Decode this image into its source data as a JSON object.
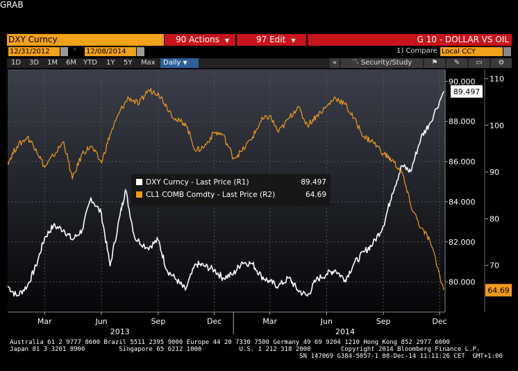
{
  "window": {
    "title": "GRAB"
  },
  "header": {
    "ticker": "DXY Curncy",
    "actions_label": "90 Actions",
    "edit_label": "97 Edit",
    "chart_title": "G 10 - DOLLAR VS OIL"
  },
  "dates": {
    "start": "12/31/2012",
    "end": "12/08/2014",
    "separator": "-"
  },
  "compare": {
    "label": "1) Compare",
    "value": "Local CCY"
  },
  "timeframes": [
    "1D",
    "3D",
    "1M",
    "6M",
    "YTD",
    "1Y",
    "5Y",
    "Max"
  ],
  "frequency": "Daily",
  "toolbar": {
    "security_study": "Security/Study",
    "collapse": "«"
  },
  "legend": [
    {
      "label": "DXY Curncy - Last Price (R1)",
      "value": "89.497",
      "color": "#ffffff"
    },
    {
      "label": "CL1 COMB Comdty - Last Price (R2)",
      "value": "64.69",
      "color": "#f39a1c"
    }
  ],
  "last_values": {
    "dxy": "89.497",
    "cl1": "64.69"
  },
  "footer": {
    "line1": "Australia 61 2 9777 8600 Brazil 5511 2395 9000 Europe 44 20 7330 7500 Germany 49 69 9204 1210 Hong Kong 852 2977 6000",
    "line2": "Japan 81 3 3201 8900         Singapore 65 6212 1000          U.S. 1 212 318 2000        Copyright 2014 Bloomberg Finance L.P.",
    "line3": "                                                                             SN 147069 G384-5057-1 08-Dec-14 11:11:26 CET  GMT+1:00"
  },
  "chart_data": {
    "type": "line",
    "title": "G 10 - DOLLAR VS OIL",
    "x_tick_labels": [
      "Mar",
      "Jun",
      "Sep",
      "Dec",
      "Mar",
      "Jun",
      "Sep",
      "Dec"
    ],
    "year_labels": [
      "2013",
      "2014"
    ],
    "y_axis_r1": {
      "ticks": [
        "80.000",
        "82.000",
        "84.000",
        "86.000",
        "88.000",
        "90.000"
      ],
      "ylim": [
        78.5,
        90.6
      ]
    },
    "y_axis_r2": {
      "ticks": [
        "70",
        "80",
        "90",
        "100",
        "110"
      ],
      "ylim": [
        60,
        112
      ]
    },
    "series": [
      {
        "name": "DXY Curncy - Last Price (R1)",
        "axis": "R1",
        "color": "#ffffff",
        "x": [
          "2012-12-31",
          "2013-01-15",
          "2013-02-01",
          "2013-02-15",
          "2013-03-01",
          "2013-03-15",
          "2013-04-01",
          "2013-04-15",
          "2013-05-01",
          "2013-05-15",
          "2013-06-01",
          "2013-06-15",
          "2013-07-01",
          "2013-07-10",
          "2013-07-25",
          "2013-08-15",
          "2013-09-01",
          "2013-09-15",
          "2013-10-01",
          "2013-10-15",
          "2013-11-01",
          "2013-11-15",
          "2013-12-01",
          "2013-12-15",
          "2014-01-01",
          "2014-01-15",
          "2014-02-01",
          "2014-02-15",
          "2014-03-01",
          "2014-03-15",
          "2014-04-01",
          "2014-04-15",
          "2014-05-01",
          "2014-05-15",
          "2014-06-01",
          "2014-06-15",
          "2014-07-01",
          "2014-07-15",
          "2014-08-01",
          "2014-08-15",
          "2014-09-01",
          "2014-09-15",
          "2014-10-01",
          "2014-10-15",
          "2014-11-01",
          "2014-11-15",
          "2014-12-08"
        ],
        "y": [
          79.8,
          79.3,
          79.8,
          80.8,
          82.2,
          82.8,
          82.6,
          82.1,
          82.6,
          84.2,
          83.4,
          80.8,
          83.3,
          84.6,
          82.2,
          81.7,
          82.1,
          80.6,
          80.1,
          79.6,
          80.9,
          80.8,
          80.6,
          80.2,
          80.4,
          81.0,
          80.9,
          80.3,
          80.0,
          79.8,
          80.2,
          79.6,
          79.3,
          80.1,
          80.4,
          80.6,
          80.1,
          80.9,
          81.5,
          81.9,
          82.8,
          84.4,
          85.8,
          85.5,
          87.2,
          87.9,
          89.5
        ]
      },
      {
        "name": "CL1 COMB Comdty - Last Price (R2)",
        "axis": "R2",
        "color": "#f39a1c",
        "x": [
          "2012-12-31",
          "2013-01-15",
          "2013-02-01",
          "2013-02-15",
          "2013-03-01",
          "2013-03-15",
          "2013-04-01",
          "2013-04-15",
          "2013-05-01",
          "2013-05-15",
          "2013-06-01",
          "2013-06-15",
          "2013-07-01",
          "2013-07-15",
          "2013-08-01",
          "2013-08-15",
          "2013-09-01",
          "2013-09-15",
          "2013-10-01",
          "2013-10-15",
          "2013-11-01",
          "2013-11-15",
          "2013-12-01",
          "2013-12-15",
          "2014-01-01",
          "2014-01-15",
          "2014-02-01",
          "2014-02-15",
          "2014-03-01",
          "2014-03-15",
          "2014-04-01",
          "2014-04-15",
          "2014-05-01",
          "2014-05-15",
          "2014-06-01",
          "2014-06-15",
          "2014-07-01",
          "2014-07-15",
          "2014-08-01",
          "2014-08-15",
          "2014-09-01",
          "2014-09-15",
          "2014-10-01",
          "2014-10-15",
          "2014-11-01",
          "2014-11-15",
          "2014-12-08"
        ],
        "y": [
          92.0,
          95.5,
          97.5,
          95.0,
          91.0,
          93.5,
          96.5,
          88.5,
          94.0,
          95.5,
          92.0,
          98.0,
          103.0,
          106.0,
          104.5,
          107.5,
          107.0,
          104.0,
          101.0,
          100.5,
          94.5,
          95.5,
          98.5,
          98.0,
          93.0,
          94.5,
          97.5,
          101.0,
          102.0,
          98.5,
          101.5,
          104.0,
          100.0,
          102.0,
          104.0,
          106.0,
          104.5,
          101.5,
          97.5,
          96.5,
          94.0,
          92.5,
          90.0,
          83.0,
          78.0,
          75.5,
          64.69
        ]
      }
    ],
    "grid": true
  }
}
